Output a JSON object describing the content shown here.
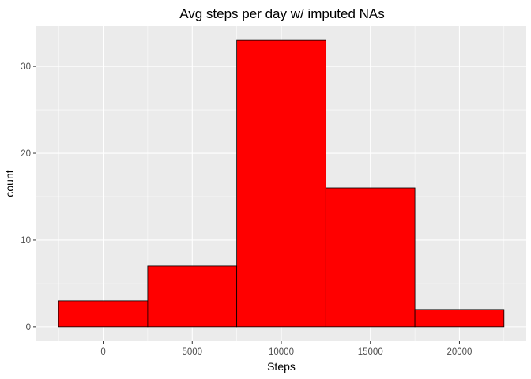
{
  "chart_data": {
    "type": "bar",
    "subtype": "histogram",
    "title": "Avg steps per day w/ imputed NAs",
    "xlabel": "Steps",
    "ylabel": "count",
    "bins": [
      {
        "x0": -2500,
        "x1": 2500,
        "count": 3
      },
      {
        "x0": 2500,
        "x1": 7500,
        "count": 7
      },
      {
        "x0": 7500,
        "x1": 12500,
        "count": 33
      },
      {
        "x0": 12500,
        "x1": 17500,
        "count": 16
      },
      {
        "x0": 17500,
        "x1": 22500,
        "count": 2
      }
    ],
    "xlim": [
      -3750,
      23750
    ],
    "ylim": [
      -1.65,
      34.65
    ],
    "x_ticks": [
      0,
      5000,
      10000,
      15000,
      20000
    ],
    "y_ticks": [
      0,
      10,
      20,
      30
    ],
    "grid": true,
    "colors": {
      "panel": "#ebebeb",
      "grid_major": "#ffffff",
      "bar_fill": "#ff0000",
      "bar_stroke": "#000000"
    }
  }
}
